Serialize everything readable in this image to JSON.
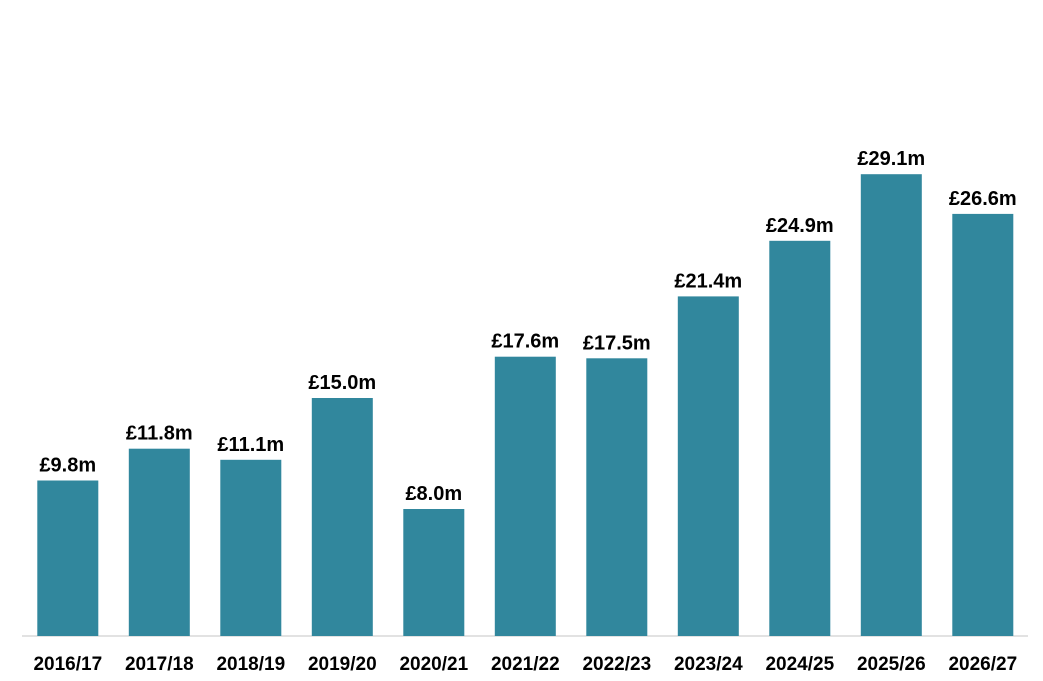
{
  "chart_data": {
    "type": "bar",
    "title": "",
    "xlabel": "",
    "ylabel": "",
    "categories": [
      "2016/17",
      "2017/18",
      "2018/19",
      "2019/20",
      "2020/21",
      "2021/22",
      "2022/23",
      "2023/24",
      "2024/25",
      "2025/26",
      "2026/27"
    ],
    "values": [
      9.8,
      11.8,
      11.1,
      15.0,
      8.0,
      17.6,
      17.5,
      21.4,
      24.9,
      29.1,
      26.6
    ],
    "value_labels": [
      "£9.8m",
      "£11.8m",
      "£11.1m",
      "£15.0m",
      "£8.0m",
      "£17.6m",
      "£17.5m",
      "£21.4m",
      "£24.9m",
      "£29.1m",
      "£26.6m"
    ],
    "unit": "£m",
    "ylim": [
      0,
      35
    ],
    "grid": false,
    "bar_color": "#31879D",
    "axis_color": "#D9D9D9"
  }
}
